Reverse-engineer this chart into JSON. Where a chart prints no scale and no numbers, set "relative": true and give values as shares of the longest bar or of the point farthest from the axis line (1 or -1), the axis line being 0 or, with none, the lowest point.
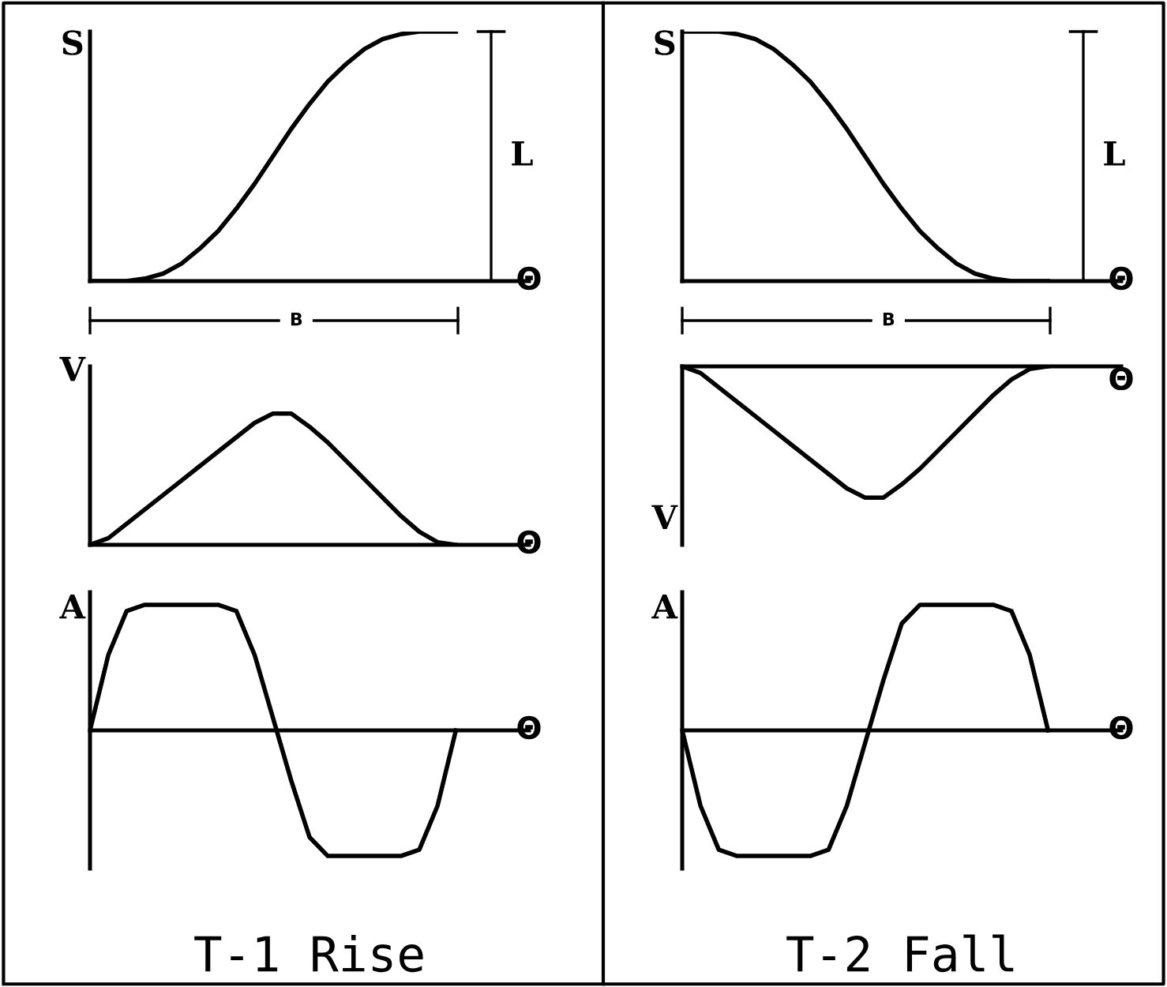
{
  "chart_data": [
    {
      "type": "line",
      "relative": true,
      "ylabel": "S",
      "xlabel": "Θ",
      "annotations": [
        "L",
        "B"
      ],
      "categories": [
        null,
        null,
        null,
        null,
        null,
        null,
        null,
        null,
        null,
        null,
        null,
        null,
        null,
        null,
        null,
        null,
        null,
        null,
        null,
        null,
        null,
        null,
        null,
        null,
        null
      ],
      "series": [
        {
          "color": "#000000",
          "values": [
            0,
            0,
            0,
            0.01,
            0.03,
            0.07,
            0.13,
            0.2,
            0.29,
            0.39,
            0.5,
            0.61,
            0.71,
            0.8,
            0.87,
            0.93,
            0.97,
            0.99,
            1,
            1,
            1,
            null,
            null,
            null,
            null
          ]
        }
      ]
    },
    {
      "type": "line",
      "relative": true,
      "ylabel": "S",
      "xlabel": "Θ",
      "annotations": [
        "L",
        "B"
      ],
      "categories": [
        null,
        null,
        null,
        null,
        null,
        null,
        null,
        null,
        null,
        null,
        null,
        null,
        null,
        null,
        null,
        null,
        null,
        null,
        null,
        null,
        null,
        null,
        null,
        null,
        null
      ],
      "series": [
        {
          "color": "#000000",
          "values": [
            1,
            1,
            1,
            0.99,
            0.97,
            0.93,
            0.87,
            0.8,
            0.71,
            0.61,
            0.5,
            0.39,
            0.29,
            0.2,
            0.13,
            0.07,
            0.03,
            0.01,
            0,
            0,
            0,
            null,
            null,
            null,
            null
          ]
        }
      ]
    },
    {
      "type": "line",
      "relative": true,
      "ylabel": "V",
      "xlabel": "Θ",
      "categories": [
        null,
        null,
        null,
        null,
        null,
        null,
        null,
        null,
        null,
        null,
        null,
        null,
        null,
        null,
        null,
        null,
        null,
        null,
        null,
        null,
        null,
        null,
        null,
        null,
        null
      ],
      "series": [
        {
          "color": "#000000",
          "values": [
            0,
            0.05,
            0.16,
            0.27,
            0.38,
            0.49,
            0.6,
            0.71,
            0.82,
            0.93,
            1,
            1,
            0.9,
            0.78,
            0.64,
            0.5,
            0.36,
            0.22,
            0.1,
            0.02,
            0,
            null,
            null,
            null,
            null
          ]
        }
      ]
    },
    {
      "type": "line",
      "relative": true,
      "ylabel": "V",
      "xlabel": "Θ",
      "categories": [
        null,
        null,
        null,
        null,
        null,
        null,
        null,
        null,
        null,
        null,
        null,
        null,
        null,
        null,
        null,
        null,
        null,
        null,
        null,
        null,
        null,
        null,
        null,
        null,
        null
      ],
      "series": [
        {
          "color": "#000000",
          "values": [
            0,
            -0.05,
            -0.16,
            -0.27,
            -0.38,
            -0.49,
            -0.6,
            -0.71,
            -0.82,
            -0.93,
            -1,
            -1,
            -0.9,
            -0.78,
            -0.64,
            -0.5,
            -0.36,
            -0.22,
            -0.1,
            -0.02,
            0,
            null,
            null,
            null,
            null
          ]
        }
      ]
    },
    {
      "type": "line",
      "relative": true,
      "ylabel": "A",
      "xlabel": "Θ",
      "title": "T-1 Rise",
      "categories": [
        null,
        null,
        null,
        null,
        null,
        null,
        null,
        null,
        null,
        null,
        null,
        null,
        null,
        null,
        null,
        null,
        null,
        null,
        null,
        null,
        null,
        null,
        null,
        null,
        null
      ],
      "series": [
        {
          "color": "#000000",
          "values": [
            0,
            0.6,
            0.95,
            1,
            1,
            1,
            1,
            1,
            0.95,
            0.6,
            0.1,
            -0.4,
            -0.85,
            -1,
            -1,
            -1,
            -1,
            -1,
            -0.95,
            -0.6,
            0,
            null,
            null,
            null,
            null
          ]
        }
      ]
    },
    {
      "type": "line",
      "relative": true,
      "ylabel": "A",
      "xlabel": "Θ",
      "title": "T-2 Fall",
      "categories": [
        null,
        null,
        null,
        null,
        null,
        null,
        null,
        null,
        null,
        null,
        null,
        null,
        null,
        null,
        null,
        null,
        null,
        null,
        null,
        null,
        null,
        null,
        null,
        null,
        null
      ],
      "series": [
        {
          "color": "#000000",
          "values": [
            0,
            -0.6,
            -0.95,
            -1,
            -1,
            -1,
            -1,
            -1,
            -0.95,
            -0.6,
            -0.1,
            0.4,
            0.85,
            1,
            1,
            1,
            1,
            1,
            0.95,
            0.6,
            0,
            null,
            null,
            null,
            null
          ]
        }
      ]
    }
  ]
}
